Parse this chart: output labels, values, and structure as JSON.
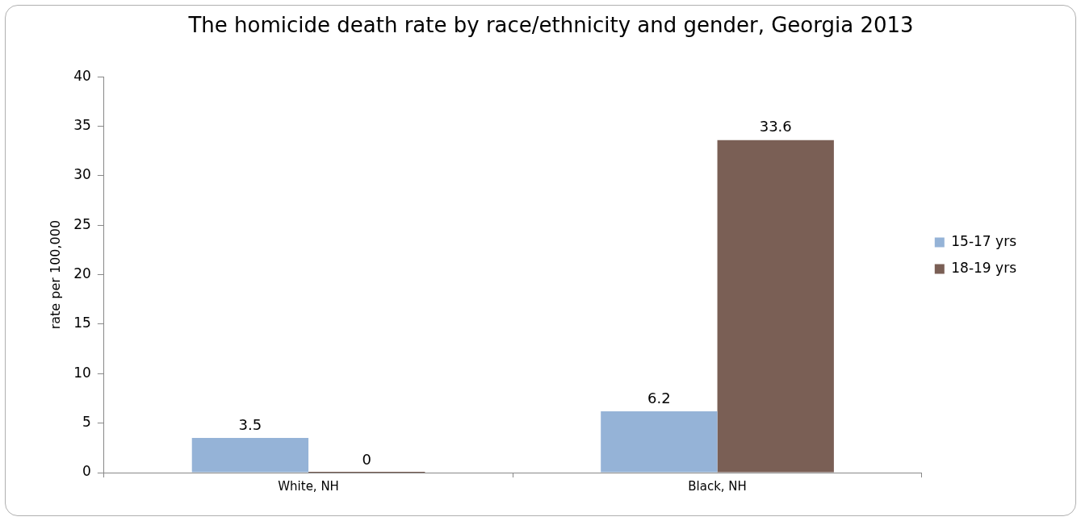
{
  "chart_data": {
    "type": "bar",
    "title": "The homicide death rate by race/ethnicity and gender, Georgia 2013",
    "ylabel": "rate per 100,000",
    "categories": [
      "White, NH",
      "Black, NH"
    ],
    "series": [
      {
        "name": "15-17 yrs",
        "color": "#95b3d7",
        "values": [
          3.5,
          6.2
        ]
      },
      {
        "name": "18-19 yrs",
        "color": "#7a5f55",
        "values": [
          0,
          33.6
        ]
      }
    ],
    "ylim": [
      0,
      40
    ],
    "yticks": [
      0,
      5,
      10,
      15,
      20,
      25,
      30,
      35,
      40
    ],
    "grid": false,
    "legend": "right",
    "data_labels": true
  }
}
